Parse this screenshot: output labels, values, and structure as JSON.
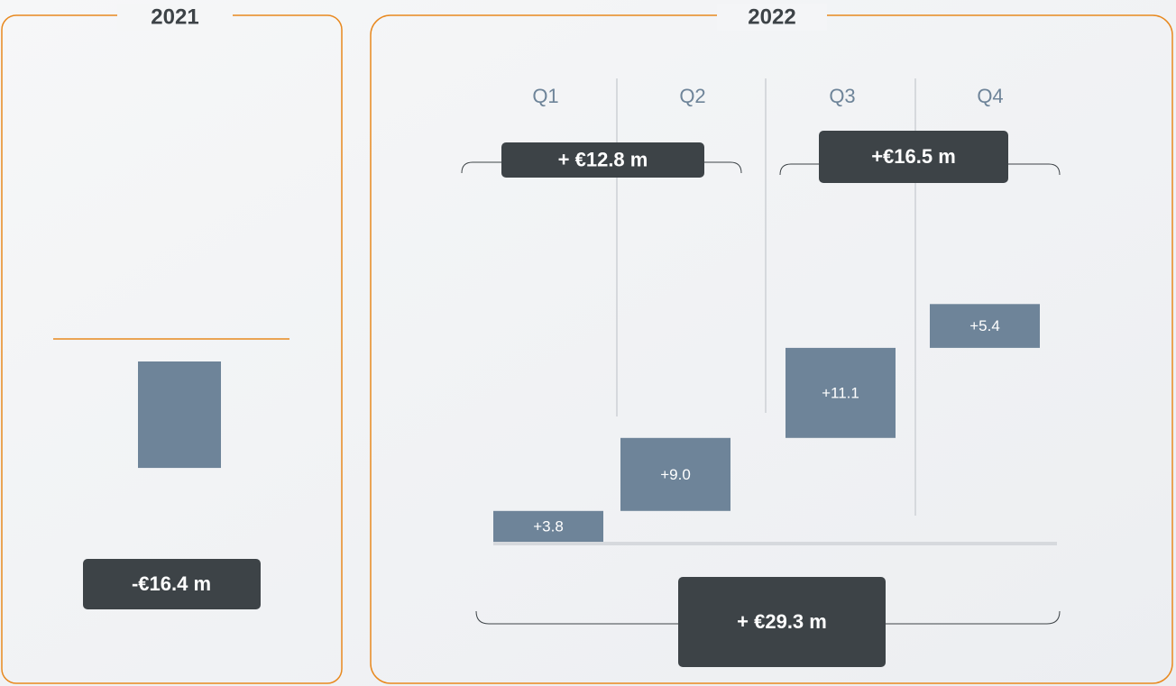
{
  "chart_data": [
    {
      "type": "bar",
      "title": "2021",
      "values": [
        -16.4
      ],
      "value_labels": [
        "-€16.4 m"
      ],
      "color": "#6e8499"
    },
    {
      "type": "waterfall",
      "title": "2022",
      "categories": [
        "Q1",
        "Q2",
        "Q3",
        "Q4"
      ],
      "values": [
        3.8,
        9.0,
        11.1,
        5.4
      ],
      "value_labels": [
        "+3.8",
        "+9.0",
        "+11.1",
        "+5.4"
      ],
      "color": "#6e8499",
      "subtotals": [
        {
          "value": 12.8,
          "label": "+ €12.8 m"
        },
        {
          "value": 16.5,
          "label": "+€16.5 m"
        }
      ],
      "total": {
        "value": 29.3,
        "label": "+ €29.3 m"
      }
    }
  ]
}
